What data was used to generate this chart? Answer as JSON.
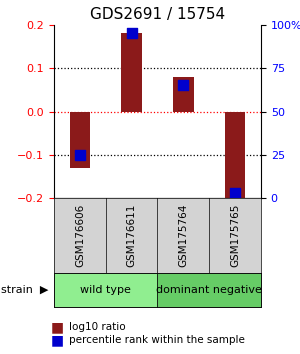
{
  "title": "GDS2691 / 15754",
  "samples": [
    "GSM176606",
    "GSM176611",
    "GSM175764",
    "GSM175765"
  ],
  "log10_ratio": [
    -0.13,
    0.18,
    0.08,
    -0.2
  ],
  "percentile_rank": [
    25,
    95,
    65,
    3
  ],
  "groups": [
    {
      "label": "wild type",
      "samples": [
        0,
        1
      ],
      "color": "#90EE90"
    },
    {
      "label": "dominant negative",
      "samples": [
        2,
        3
      ],
      "color": "#66CC66"
    }
  ],
  "ylim_left": [
    -0.2,
    0.2
  ],
  "ylim_right": [
    0,
    100
  ],
  "yticks_left": [
    -0.2,
    -0.1,
    0,
    0.1,
    0.2
  ],
  "yticks_right": [
    0,
    25,
    50,
    75,
    100
  ],
  "ytick_labels_right": [
    "0",
    "25",
    "50",
    "75",
    "100%"
  ],
  "hlines_black_dotted": [
    -0.1,
    0.1
  ],
  "hline_red_dotted": 0,
  "bar_color": "#8B1A1A",
  "square_color": "#0000CD",
  "bar_width": 0.4,
  "square_size": 60,
  "legend_red_label": "log10 ratio",
  "legend_blue_label": "percentile rank within the sample",
  "strain_label": "strain",
  "background_color": "#ffffff",
  "plot_bg": "#ffffff"
}
